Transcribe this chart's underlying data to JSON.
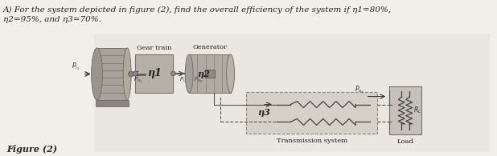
{
  "title_line1": "A) For the system depicted in figure (2), find the overall efficiency of the system if η1=80%,",
  "title_line2": "η2=95%, and η3=70%.",
  "fig_label": "Figure (2)",
  "gear_train_label": "Gear train",
  "generator_label": "Generator",
  "transmission_label": "Transmission system",
  "load_label": "Load",
  "RL_label": "R_L",
  "eta1_label": "η1",
  "eta2_label": "η2",
  "eta3_label": "η3",
  "bg_color": "#f2efe9",
  "text_color": "#222222",
  "diagram_bg": "#dedad2",
  "engine_color": "#b0aa9e",
  "gear_color": "#b8b2a8",
  "gen_color": "#b5afa5",
  "trans_bg": "#cdc8c0",
  "load_bg": "#c8c2ba",
  "wire_color": "#555555",
  "label_color": "#333333"
}
